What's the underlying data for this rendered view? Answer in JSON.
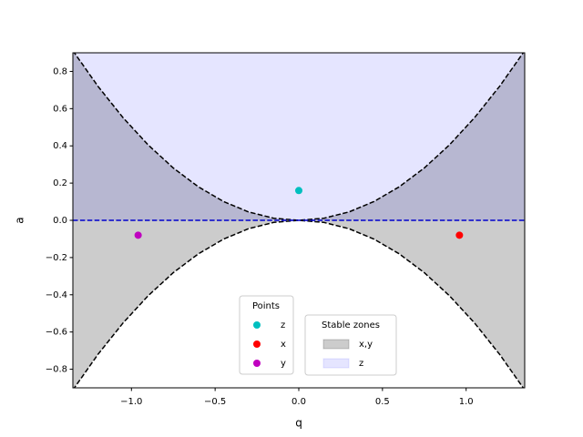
{
  "chart_data": {
    "type": "scatter",
    "xlabel": "q",
    "ylabel": "a",
    "xlim": [
      -1.35,
      1.35
    ],
    "ylim": [
      -0.9,
      0.9
    ],
    "xticks": [
      {
        "value": -1.0,
        "label": "−1.0"
      },
      {
        "value": -0.5,
        "label": "−0.5"
      },
      {
        "value": 0.0,
        "label": "0.0"
      },
      {
        "value": 0.5,
        "label": "0.5"
      },
      {
        "value": 1.0,
        "label": "1.0"
      }
    ],
    "yticks": [
      {
        "value": -0.8,
        "label": "−0.8"
      },
      {
        "value": -0.6,
        "label": "−0.6"
      },
      {
        "value": -0.4,
        "label": "−0.4"
      },
      {
        "value": -0.2,
        "label": "−0.2"
      },
      {
        "value": 0.0,
        "label": "0.0"
      },
      {
        "value": 0.2,
        "label": "0.2"
      },
      {
        "value": 0.4,
        "label": "0.4"
      },
      {
        "value": 0.6,
        "label": "0.6"
      },
      {
        "value": 0.8,
        "label": "0.8"
      }
    ],
    "curve": {
      "color": "#000000",
      "x": [
        -1.35,
        -1.2,
        -1.05,
        -0.9,
        -0.75,
        -0.6,
        -0.45,
        -0.3,
        -0.15,
        0,
        0.15,
        0.3,
        0.45,
        0.6,
        0.75,
        0.9,
        1.05,
        1.2,
        1.35
      ],
      "upper": [
        0.91125,
        0.72,
        0.55125,
        0.405,
        0.28125,
        0.18,
        0.10125,
        0.045,
        0.01125,
        0,
        0.01125,
        0.045,
        0.10125,
        0.18,
        0.28125,
        0.405,
        0.55125,
        0.72,
        0.91125
      ],
      "lower": [
        -0.91125,
        -0.72,
        -0.55125,
        -0.405,
        -0.28125,
        -0.18,
        -0.10125,
        -0.045,
        -0.01125,
        0,
        -0.01125,
        -0.045,
        -0.10125,
        -0.18,
        -0.28125,
        -0.405,
        -0.55125,
        -0.72,
        -0.91125
      ]
    },
    "zero_line": {
      "y": 0,
      "color": "#0000cc"
    },
    "zones_title": "Stable zones",
    "zones": [
      {
        "name": "x,y",
        "color": "#000000",
        "alpha": 0.2
      },
      {
        "name": "z",
        "color": "#0000ff",
        "alpha": 0.1
      }
    ],
    "points_title": "Points",
    "points": [
      {
        "name": "z",
        "color": "#00bfbf",
        "x": 0.0,
        "y": 0.16
      },
      {
        "name": "x",
        "color": "#ff0000",
        "x": 0.96,
        "y": -0.08
      },
      {
        "name": "y",
        "color": "#bf00bf",
        "x": -0.96,
        "y": -0.08
      }
    ]
  }
}
